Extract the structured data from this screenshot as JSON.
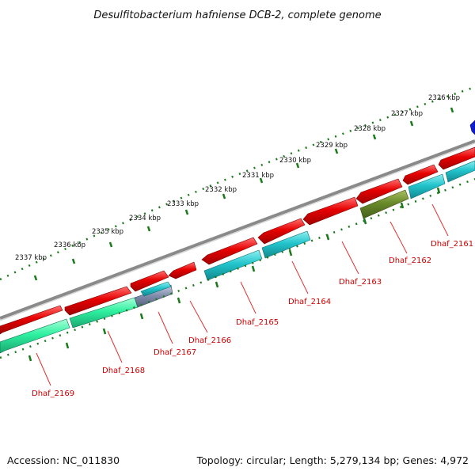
{
  "title": "Desulfitobacterium hafniense DCB-2, complete genome",
  "footer": {
    "accession": "Accession: NC_011830",
    "topology": "Topology: circular; Length: 5,279,134 bp; Genes: 4,972"
  },
  "colors": {
    "backbone": "#7a7a7a",
    "ruler": "#1a7a1a",
    "forward_strand": "#e60000",
    "reverse_cyan": "#22c4cc",
    "reverse_green": "#2ef0a0",
    "olive": "#6a8a2a",
    "blue": "#1020d0",
    "label": "#cc0000",
    "leader": "#dd3333"
  },
  "kbp_labels": [
    "2326 kbp",
    "2327 kbp",
    "2328 kbp",
    "2329 kbp",
    "2330 kbp",
    "2331 kbp",
    "2332 kbp",
    "2333 kbp",
    "2334 kbp",
    "2335 kbp",
    "2336 kbp",
    "2337 kbp"
  ],
  "gene_labels": [
    "Dhaf_2161",
    "Dhaf_2162",
    "Dhaf_2163",
    "Dhaf_2164",
    "Dhaf_2165",
    "Dhaf_2166",
    "Dhaf_2167",
    "Dhaf_2168",
    "Dhaf_2169"
  ]
}
